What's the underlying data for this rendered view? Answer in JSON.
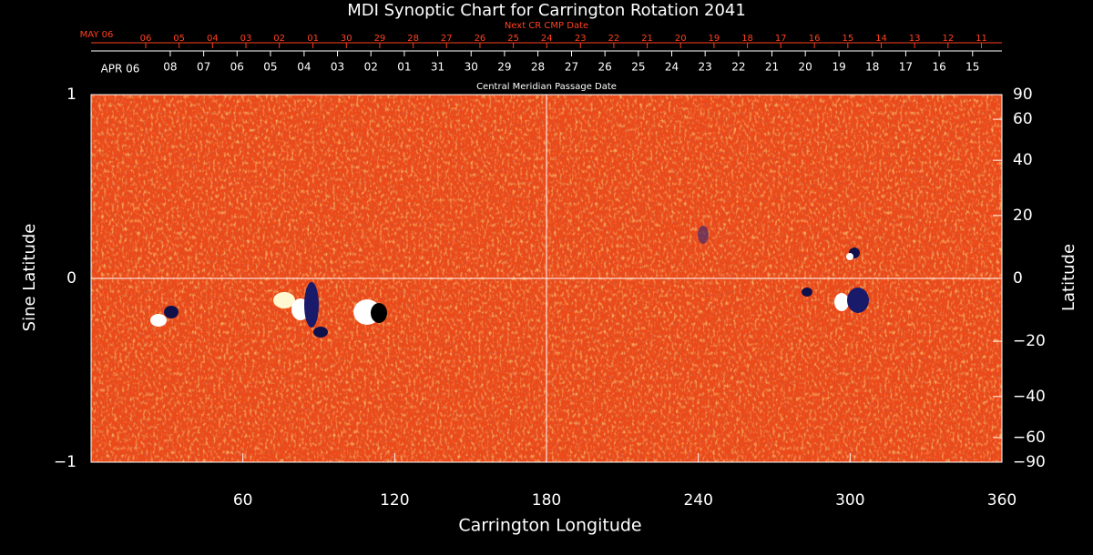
{
  "chart_data": {
    "type": "synoptic-map",
    "title": "MDI Synoptic Chart for Carrington Rotation 2041",
    "xlabel": "Carrington Longitude",
    "ylabel": "Sine Latitude",
    "y2label": "Latitude",
    "xlim": [
      0,
      360
    ],
    "xticks": [
      60,
      120,
      180,
      240,
      300,
      360
    ],
    "ylim": [
      -1,
      1
    ],
    "yticks": [
      {
        "value": -1,
        "label": "−1"
      },
      0,
      1
    ],
    "y2scale": "sine",
    "y2lim": [
      -90,
      90
    ],
    "y2ticks": [
      90,
      60,
      40,
      20,
      0,
      {
        "value": -20,
        "label": "−20"
      },
      {
        "value": -40,
        "label": "−40"
      },
      {
        "value": -60,
        "label": "−60"
      },
      {
        "value": -90,
        "label": "−90"
      }
    ],
    "crosshair": [
      180,
      0
    ],
    "cmp_axis": {
      "label": "Central Meridian Passage Date",
      "month": "APR 06",
      "x": [
        31.3,
        44.5,
        57.7,
        70.9,
        84.2,
        97.4,
        110.6,
        123.8,
        137.0,
        150.2,
        163.4,
        176.6,
        189.9,
        203.1,
        216.3,
        229.5,
        242.7,
        255.9,
        269.1,
        282.3,
        295.6,
        308.8,
        322.0,
        335.2,
        348.4
      ],
      "labels": [
        "08",
        "07",
        "06",
        "05",
        "04",
        "03",
        "02",
        "01",
        "31",
        "30",
        "29",
        "28",
        "27",
        "26",
        "25",
        "24",
        "23",
        "22",
        "21",
        "20",
        "19",
        "18",
        "17",
        "16",
        "15"
      ]
    },
    "next_cmp_axis": {
      "label": "Next CR CMP Date",
      "month": "MAY 06",
      "color": "#ff4020",
      "x": [
        21.6,
        34.8,
        48.0,
        61.2,
        74.4,
        87.7,
        100.9,
        114.1,
        127.3,
        140.5,
        153.7,
        166.9,
        180.1,
        193.4,
        206.6,
        219.8,
        233.0,
        246.2,
        259.4,
        272.6,
        285.9,
        299.1,
        312.3,
        325.5,
        338.7,
        351.9
      ],
      "labels": [
        "06",
        "05",
        "04",
        "03",
        "02",
        "01",
        "30",
        "29",
        "28",
        "27",
        "26",
        "25",
        "24",
        "23",
        "22",
        "21",
        "20",
        "19",
        "18",
        "17",
        "16",
        "15",
        "14",
        "13",
        "12",
        "11"
      ]
    }
  }
}
